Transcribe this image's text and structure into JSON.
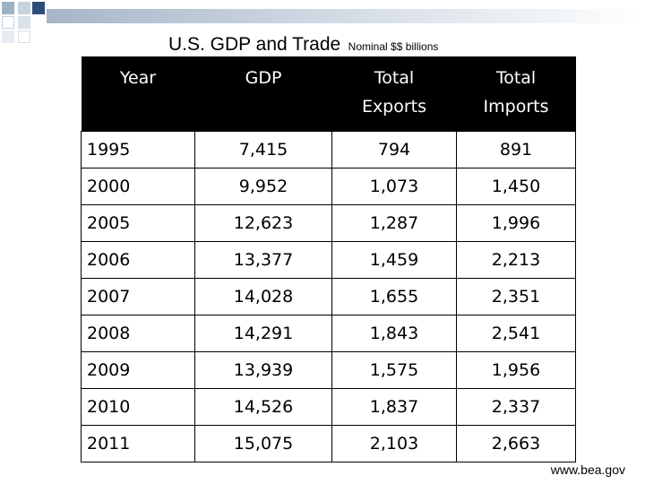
{
  "title": "U.S. GDP and Trade",
  "subtitle": "Nominal $$ billions",
  "table": {
    "headers": [
      {
        "line1": "Year",
        "line2": ""
      },
      {
        "line1": "GDP",
        "line2": ""
      },
      {
        "line1": "Total",
        "line2": "Exports"
      },
      {
        "line1": "Total",
        "line2": "Imports"
      }
    ],
    "rows": [
      [
        "1995",
        "7,415",
        "794",
        "891"
      ],
      [
        "2000",
        "9,952",
        "1,073",
        "1,450"
      ],
      [
        "2005",
        "12,623",
        "1,287",
        "1,996"
      ],
      [
        "2006",
        "13,377",
        "1,459",
        "2,213"
      ],
      [
        "2007",
        "14,028",
        "1,655",
        "2,351"
      ],
      [
        "2008",
        "14,291",
        "1,843",
        "2,541"
      ],
      [
        "2009",
        "13,939",
        "1,575",
        "1,956"
      ],
      [
        "2010",
        "14,526",
        "1,837",
        "2,337"
      ],
      [
        "2011",
        "15,075",
        "2,103",
        "2,663"
      ]
    ]
  },
  "source": "www.bea.gov"
}
